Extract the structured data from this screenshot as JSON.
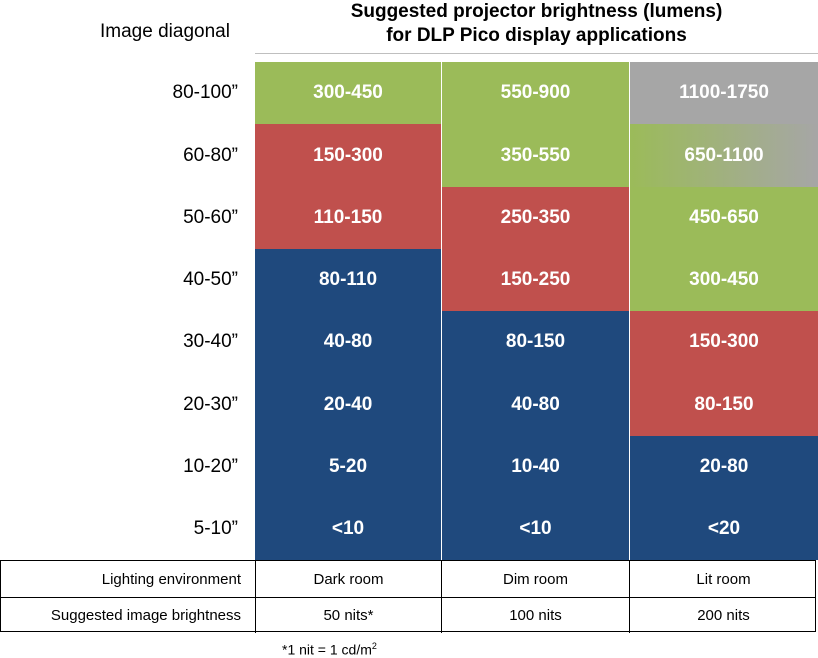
{
  "chart_data": {
    "type": "table",
    "title": "Suggested projector brightness (lumens)",
    "subtitle": "for DLP Pico display applications",
    "row_header": "Image diagonal",
    "columns": [
      "Dark room",
      "Dim room",
      "Lit room"
    ],
    "rows": [
      "80-100”",
      "60-80”",
      "50-60”",
      "40-50”",
      "30-40”",
      "20-30”",
      "10-20”",
      "5-10”"
    ],
    "values": [
      [
        "300-450",
        "550-900",
        "1100-1750"
      ],
      [
        "150-300",
        "350-550",
        "650-1100"
      ],
      [
        "110-150",
        "250-350",
        "450-650"
      ],
      [
        "80-110",
        "150-250",
        "300-450"
      ],
      [
        "40-80",
        "80-150",
        "150-300"
      ],
      [
        "20-40",
        "40-80",
        "80-150"
      ],
      [
        "5-20",
        "10-40",
        "20-80"
      ],
      [
        "<10",
        "<10",
        "<20"
      ]
    ],
    "cell_colors": [
      [
        "green",
        "green",
        "gray"
      ],
      [
        "red",
        "green",
        "green-gray"
      ],
      [
        "red",
        "red",
        "green"
      ],
      [
        "blue",
        "red",
        "green"
      ],
      [
        "blue",
        "blue",
        "red"
      ],
      [
        "blue",
        "blue",
        "red"
      ],
      [
        "blue",
        "blue",
        "blue"
      ],
      [
        "blue",
        "blue",
        "blue"
      ]
    ],
    "palette": {
      "green": "#9bbb59",
      "red": "#c0504d",
      "blue": "#1f497d",
      "gray": "#a6a6a6"
    }
  },
  "lighting": {
    "label": "Lighting environment",
    "values": [
      "Dark room",
      "Dim room",
      "Lit room"
    ]
  },
  "brightness": {
    "label": "Suggested image brightness",
    "values": [
      "50 nits*",
      "100 nits",
      "200 nits"
    ]
  },
  "footnote": {
    "text": "*1 nit = 1 cd/m",
    "sup": "2"
  }
}
